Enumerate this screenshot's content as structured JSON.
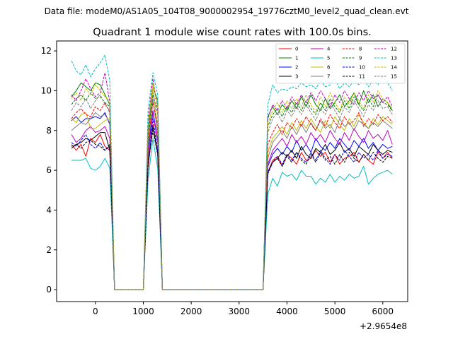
{
  "figure": {
    "suptitle": "Data file: modeM0/AS1A05_104T08_9000002954_19776cztM0_level2_quad_clean.evt",
    "offset_label": "+2.9654e8"
  },
  "chart_data": {
    "type": "line",
    "title": "Quadrant 1 module wise count rates with 100.0s bins.",
    "xlabel": "",
    "ylabel": "",
    "xlim": [
      -810,
      6520
    ],
    "ylim": [
      -0.6,
      12.5
    ],
    "x_ticks": [
      0,
      1000,
      2000,
      3000,
      4000,
      5000,
      6000
    ],
    "y_ticks": [
      0,
      2,
      4,
      6,
      8,
      10,
      12
    ],
    "x_tick_labels": [
      "0",
      "1000",
      "2000",
      "3000",
      "4000",
      "5000",
      "6000"
    ],
    "y_tick_labels": [
      "0",
      "2",
      "4",
      "6",
      "8",
      "10",
      "12"
    ],
    "legend_position": "top-right",
    "x": [
      -500,
      -400,
      -300,
      -200,
      -100,
      0,
      100,
      200,
      300,
      400,
      500,
      600,
      700,
      800,
      900,
      1000,
      1100,
      1200,
      1300,
      1400,
      1500,
      1600,
      1700,
      1800,
      1900,
      2000,
      2100,
      2200,
      2300,
      2400,
      2500,
      2600,
      2700,
      2800,
      2900,
      3000,
      3100,
      3200,
      3300,
      3400,
      3500,
      3600,
      3700,
      3800,
      3900,
      4000,
      4100,
      4200,
      4300,
      4400,
      4500,
      4600,
      4700,
      4800,
      4900,
      5000,
      5100,
      5200,
      5300,
      5400,
      5500,
      5600,
      5700,
      5800,
      5900,
      6000,
      6100,
      6200
    ],
    "series": [
      {
        "name": "0",
        "color": "#ff0000",
        "dash": "solid",
        "values": [
          7.3,
          7.0,
          7.3,
          6.7,
          7.6,
          7.4,
          7.8,
          7.2,
          7.0,
          0.0,
          0.0,
          0.0,
          0.0,
          0.0,
          0.0,
          0.0,
          6.1,
          8.3,
          6.8,
          0.0,
          0.0,
          0.0,
          0.0,
          0.0,
          0.0,
          0.0,
          0.0,
          0.0,
          0.0,
          0.0,
          0.0,
          0.0,
          0.0,
          0.0,
          0.0,
          0.0,
          0.0,
          0.0,
          0.0,
          0.0,
          0.0,
          5.9,
          6.5,
          6.7,
          6.2,
          6.8,
          6.6,
          6.3,
          6.9,
          6.5,
          6.6,
          7.0,
          6.7,
          6.9,
          6.4,
          6.8,
          6.3,
          6.6,
          6.7,
          6.9,
          6.4,
          6.8,
          6.5,
          6.3,
          6.9,
          6.6,
          6.9,
          6.6
        ]
      },
      {
        "name": "1",
        "color": "#008000",
        "dash": "solid",
        "values": [
          9.7,
          10.0,
          10.4,
          10.2,
          10.0,
          10.4,
          10.3,
          9.8,
          9.3,
          0.0,
          0.0,
          0.0,
          0.0,
          0.0,
          0.0,
          0.0,
          8.0,
          10.2,
          9.5,
          0.0,
          0.0,
          0.0,
          0.0,
          0.0,
          0.0,
          0.0,
          0.0,
          0.0,
          0.0,
          0.0,
          0.0,
          0.0,
          0.0,
          0.0,
          0.0,
          0.0,
          0.0,
          0.0,
          0.0,
          0.0,
          0.0,
          8.7,
          9.2,
          8.8,
          9.3,
          9.0,
          9.5,
          9.1,
          9.7,
          9.2,
          9.8,
          9.3,
          9.0,
          9.6,
          9.1,
          9.4,
          9.8,
          9.2,
          9.5,
          9.9,
          9.3,
          10.0,
          9.4,
          9.8,
          9.2,
          9.6,
          9.4,
          9.0
        ]
      },
      {
        "name": "2",
        "color": "#0000ff",
        "dash": "solid",
        "values": [
          8.5,
          8.7,
          8.4,
          8.6,
          8.6,
          8.7,
          8.6,
          8.9,
          8.3,
          0.0,
          0.0,
          0.0,
          0.0,
          0.0,
          0.0,
          0.0,
          7.0,
          9.0,
          7.5,
          0.0,
          0.0,
          0.0,
          0.0,
          0.0,
          0.0,
          0.0,
          0.0,
          0.0,
          0.0,
          0.0,
          0.0,
          0.0,
          0.0,
          0.0,
          0.0,
          0.0,
          0.0,
          0.0,
          0.0,
          0.0,
          0.0,
          6.2,
          6.8,
          7.1,
          6.8,
          7.2,
          6.9,
          7.5,
          7.0,
          7.3,
          6.9,
          7.6,
          7.2,
          7.0,
          7.4,
          7.1,
          7.6,
          7.3,
          7.0,
          7.5,
          7.2,
          7.6,
          7.1,
          7.4,
          7.0,
          7.3,
          7.1,
          7.2
        ]
      },
      {
        "name": "3",
        "color": "#000000",
        "dash": "solid",
        "values": [
          7.1,
          7.3,
          7.4,
          7.6,
          7.5,
          7.7,
          7.9,
          7.9,
          7.0,
          0.0,
          0.0,
          0.0,
          0.0,
          0.0,
          0.0,
          0.0,
          6.4,
          8.2,
          6.9,
          0.0,
          0.0,
          0.0,
          0.0,
          0.0,
          0.0,
          0.0,
          0.0,
          0.0,
          0.0,
          0.0,
          0.0,
          0.0,
          0.0,
          0.0,
          0.0,
          0.0,
          0.0,
          0.0,
          0.0,
          0.0,
          0.0,
          5.9,
          6.4,
          6.6,
          6.9,
          6.7,
          7.0,
          6.6,
          7.2,
          6.8,
          6.6,
          7.1,
          6.9,
          7.3,
          6.8,
          7.0,
          7.4,
          6.9,
          7.1,
          6.7,
          7.2,
          7.0,
          6.8,
          7.3,
          7.0,
          6.8,
          7.0,
          6.9
        ]
      },
      {
        "name": "4",
        "color": "#bf00bf",
        "dash": "solid",
        "values": [
          7.8,
          7.4,
          7.6,
          8.0,
          8.2,
          7.9,
          8.0,
          8.2,
          7.6,
          0.0,
          0.0,
          0.0,
          0.0,
          0.0,
          0.0,
          0.0,
          6.6,
          8.9,
          7.4,
          0.0,
          0.0,
          0.0,
          0.0,
          0.0,
          0.0,
          0.0,
          0.0,
          0.0,
          0.0,
          0.0,
          0.0,
          0.0,
          0.0,
          0.0,
          0.0,
          0.0,
          0.0,
          0.0,
          0.0,
          0.0,
          0.0,
          6.3,
          7.0,
          7.3,
          7.6,
          7.2,
          7.8,
          7.4,
          7.7,
          7.3,
          7.9,
          7.5,
          7.8,
          7.4,
          8.0,
          7.6,
          7.3,
          7.9,
          7.5,
          8.1,
          7.7,
          7.4,
          8.0,
          7.6,
          7.8,
          7.5,
          8.0,
          7.3
        ]
      },
      {
        "name": "5",
        "color": "#00bfbf",
        "dash": "solid",
        "values": [
          6.5,
          6.5,
          6.5,
          6.6,
          6.1,
          6.0,
          6.2,
          6.6,
          6.1,
          0.0,
          0.0,
          0.0,
          0.0,
          0.0,
          0.0,
          0.0,
          5.5,
          7.6,
          6.1,
          0.0,
          0.0,
          0.0,
          0.0,
          0.0,
          0.0,
          0.0,
          0.0,
          0.0,
          0.0,
          0.0,
          0.0,
          0.0,
          0.0,
          0.0,
          0.0,
          0.0,
          0.0,
          0.0,
          0.0,
          0.0,
          0.0,
          4.8,
          5.6,
          5.2,
          5.9,
          5.7,
          5.8,
          5.5,
          6.0,
          5.7,
          5.7,
          5.3,
          5.6,
          5.4,
          5.8,
          5.4,
          5.7,
          5.5,
          5.8,
          5.6,
          5.7,
          6.2,
          5.3,
          5.6,
          5.8,
          5.9,
          6.0,
          5.8
        ]
      },
      {
        "name": "6",
        "color": "#bfbf00",
        "dash": "solid",
        "values": [
          8.6,
          8.4,
          8.8,
          8.9,
          8.1,
          8.1,
          8.3,
          8.5,
          8.6,
          0.0,
          0.0,
          0.0,
          0.0,
          0.0,
          0.0,
          0.0,
          7.3,
          10.3,
          7.9,
          0.0,
          0.0,
          0.0,
          0.0,
          0.0,
          0.0,
          0.0,
          0.0,
          0.0,
          0.0,
          0.0,
          0.0,
          0.0,
          0.0,
          0.0,
          0.0,
          0.0,
          0.0,
          0.0,
          0.0,
          0.0,
          0.0,
          6.9,
          7.6,
          7.9,
          8.2,
          7.8,
          8.4,
          8.0,
          8.5,
          8.1,
          8.6,
          8.2,
          7.9,
          8.5,
          8.1,
          8.7,
          8.3,
          8.0,
          8.6,
          8.2,
          8.8,
          8.4,
          8.1,
          8.6,
          8.3,
          8.7,
          8.5,
          8.3
        ]
      },
      {
        "name": "7",
        "color": "#7f7f7f",
        "dash": "solid",
        "values": [
          8.0,
          8.2,
          8.4,
          8.3,
          8.6,
          8.9,
          8.7,
          8.8,
          8.4,
          0.0,
          0.0,
          0.0,
          0.0,
          0.0,
          0.0,
          0.0,
          7.1,
          9.6,
          7.8,
          0.0,
          0.0,
          0.0,
          0.0,
          0.0,
          0.0,
          0.0,
          0.0,
          0.0,
          0.0,
          0.0,
          0.0,
          0.0,
          0.0,
          0.0,
          0.0,
          0.0,
          0.0,
          0.0,
          0.0,
          0.0,
          0.0,
          6.6,
          7.4,
          7.7,
          8.0,
          7.6,
          8.2,
          7.8,
          8.3,
          7.9,
          8.4,
          8.0,
          8.5,
          8.1,
          8.3,
          7.9,
          8.6,
          8.2,
          8.4,
          8.0,
          8.5,
          8.3,
          8.1,
          8.4,
          8.2,
          8.5,
          8.3,
          8.1
        ]
      },
      {
        "name": "8",
        "color": "#ff0000",
        "dash": "dashed",
        "values": [
          8.6,
          8.9,
          9.1,
          8.8,
          8.7,
          9.2,
          9.0,
          9.4,
          8.9,
          0.0,
          0.0,
          0.0,
          0.0,
          0.0,
          0.0,
          0.0,
          7.6,
          9.4,
          8.3,
          0.0,
          0.0,
          0.0,
          0.0,
          0.0,
          0.0,
          0.0,
          0.0,
          0.0,
          0.0,
          0.0,
          0.0,
          0.0,
          0.0,
          0.0,
          0.0,
          0.0,
          0.0,
          0.0,
          0.0,
          0.0,
          0.0,
          7.3,
          7.9,
          8.3,
          7.8,
          8.4,
          8.1,
          8.6,
          8.2,
          8.7,
          8.3,
          8.0,
          8.6,
          8.2,
          8.8,
          8.4,
          8.1,
          8.7,
          8.3,
          8.5,
          8.9,
          8.2,
          8.6,
          8.3,
          8.8,
          8.5,
          8.7,
          8.4
        ]
      },
      {
        "name": "9",
        "color": "#008000",
        "dash": "dashed",
        "values": [
          9.3,
          9.6,
          9.8,
          9.5,
          9.9,
          9.6,
          9.7,
          9.4,
          9.2,
          0.0,
          0.0,
          0.0,
          0.0,
          0.0,
          0.0,
          0.0,
          7.9,
          9.8,
          8.9,
          0.0,
          0.0,
          0.0,
          0.0,
          0.0,
          0.0,
          0.0,
          0.0,
          0.0,
          0.0,
          0.0,
          0.0,
          0.0,
          0.0,
          0.0,
          0.0,
          0.0,
          0.0,
          0.0,
          0.0,
          0.0,
          0.0,
          8.2,
          8.8,
          9.1,
          8.7,
          9.2,
          8.9,
          9.4,
          9.0,
          9.5,
          9.1,
          8.8,
          9.4,
          9.0,
          9.6,
          9.2,
          8.9,
          9.5,
          9.1,
          9.7,
          9.3,
          9.0,
          9.6,
          9.2,
          9.8,
          9.4,
          9.3,
          9.0
        ]
      },
      {
        "name": "10",
        "color": "#0000ff",
        "dash": "dashed",
        "values": [
          7.4,
          7.2,
          7.5,
          7.8,
          7.3,
          7.1,
          7.4,
          7.0,
          7.2,
          0.0,
          0.0,
          0.0,
          0.0,
          0.0,
          0.0,
          0.0,
          6.2,
          8.6,
          7.0,
          0.0,
          0.0,
          0.0,
          0.0,
          0.0,
          0.0,
          0.0,
          0.0,
          0.0,
          0.0,
          0.0,
          0.0,
          0.0,
          0.0,
          0.0,
          0.0,
          0.0,
          0.0,
          0.0,
          0.0,
          0.0,
          0.0,
          5.8,
          6.4,
          6.7,
          6.3,
          6.8,
          6.5,
          6.9,
          6.6,
          6.4,
          6.9,
          6.5,
          7.0,
          6.6,
          6.3,
          6.8,
          6.5,
          7.0,
          6.7,
          6.4,
          6.9,
          6.6,
          6.8,
          6.5,
          7.0,
          6.6,
          6.8,
          6.7
        ]
      },
      {
        "name": "11",
        "color": "#000000",
        "dash": "dashed",
        "values": [
          7.2,
          7.3,
          7.1,
          7.4,
          7.5,
          7.3,
          7.2,
          7.0,
          7.3,
          0.0,
          0.0,
          0.0,
          0.0,
          0.0,
          0.0,
          0.0,
          6.3,
          8.0,
          6.8,
          0.0,
          0.0,
          0.0,
          0.0,
          0.0,
          0.0,
          0.0,
          0.0,
          0.0,
          0.0,
          0.0,
          0.0,
          0.0,
          0.0,
          0.0,
          0.0,
          0.0,
          0.0,
          0.0,
          0.0,
          0.0,
          0.0,
          5.9,
          6.4,
          6.6,
          6.2,
          6.7,
          6.4,
          6.9,
          6.5,
          6.3,
          6.8,
          6.4,
          6.9,
          6.5,
          6.7,
          6.3,
          6.8,
          6.4,
          6.9,
          6.6,
          6.4,
          6.8,
          6.5,
          6.9,
          6.6,
          6.4,
          6.7,
          6.6
        ]
      },
      {
        "name": "12",
        "color": "#bf00bf",
        "dash": "dashed",
        "values": [
          9.8,
          9.5,
          10.0,
          10.6,
          10.1,
          9.7,
          9.9,
          10.9,
          9.4,
          0.0,
          0.0,
          0.0,
          0.0,
          0.0,
          0.0,
          0.0,
          8.5,
          10.6,
          9.0,
          0.0,
          0.0,
          0.0,
          0.0,
          0.0,
          0.0,
          0.0,
          0.0,
          0.0,
          0.0,
          0.0,
          0.0,
          0.0,
          0.0,
          0.0,
          0.0,
          0.0,
          0.0,
          0.0,
          0.0,
          0.0,
          0.0,
          8.6,
          9.3,
          9.0,
          9.5,
          9.1,
          9.7,
          9.3,
          9.8,
          9.4,
          9.9,
          9.5,
          10.0,
          9.6,
          9.2,
          9.8,
          9.4,
          10.0,
          9.6,
          9.3,
          9.9,
          9.5,
          10.0,
          9.6,
          9.8,
          9.4,
          9.7,
          9.2
        ]
      },
      {
        "name": "13",
        "color": "#00bfbf",
        "dash": "dashed",
        "values": [
          11.5,
          11.0,
          10.8,
          11.3,
          10.7,
          11.1,
          11.4,
          11.8,
          10.5,
          0.0,
          0.0,
          0.0,
          0.0,
          0.0,
          0.0,
          0.0,
          9.0,
          10.9,
          9.8,
          0.0,
          0.0,
          0.0,
          0.0,
          0.0,
          0.0,
          0.0,
          0.0,
          0.0,
          0.0,
          0.0,
          0.0,
          0.0,
          0.0,
          0.0,
          0.0,
          0.0,
          0.0,
          0.0,
          0.0,
          0.0,
          0.0,
          9.3,
          10.3,
          9.9,
          10.1,
          10.0,
          10.2,
          10.1,
          10.4,
          10.2,
          10.3,
          10.1,
          10.5,
          10.2,
          10.3,
          10.6,
          10.1,
          10.4,
          10.2,
          10.5,
          10.3,
          10.6,
          10.2,
          10.5,
          10.3,
          10.7,
          10.4,
          10.0
        ]
      },
      {
        "name": "14",
        "color": "#bfbf00",
        "dash": "dashed",
        "values": [
          9.6,
          9.9,
          9.5,
          10.1,
          9.8,
          10.3,
          10.0,
          9.7,
          9.5,
          0.0,
          0.0,
          0.0,
          0.0,
          0.0,
          0.0,
          0.0,
          8.3,
          10.4,
          9.2,
          0.0,
          0.0,
          0.0,
          0.0,
          0.0,
          0.0,
          0.0,
          0.0,
          0.0,
          0.0,
          0.0,
          0.0,
          0.0,
          0.0,
          0.0,
          0.0,
          0.0,
          0.0,
          0.0,
          0.0,
          0.0,
          0.0,
          8.4,
          9.0,
          9.4,
          8.9,
          9.5,
          9.1,
          9.6,
          9.2,
          9.8,
          9.3,
          8.9,
          9.7,
          9.2,
          9.9,
          9.4,
          9.0,
          9.7,
          9.3,
          9.9,
          9.5,
          9.1,
          9.8,
          9.4,
          10.0,
          9.6,
          9.4,
          9.1
        ]
      },
      {
        "name": "15",
        "color": "#7f7f7f",
        "dash": "dashed",
        "values": [
          9.0,
          9.4,
          9.2,
          9.6,
          9.1,
          9.5,
          9.8,
          9.3,
          9.0,
          0.0,
          0.0,
          0.0,
          0.0,
          0.0,
          0.0,
          0.0,
          8.1,
          9.9,
          8.8,
          0.0,
          0.0,
          0.0,
          0.0,
          0.0,
          0.0,
          0.0,
          0.0,
          0.0,
          0.0,
          0.0,
          0.0,
          0.0,
          0.0,
          0.0,
          0.0,
          0.0,
          0.0,
          0.0,
          0.0,
          0.0,
          0.0,
          7.9,
          8.6,
          8.9,
          8.4,
          9.0,
          8.7,
          9.2,
          8.8,
          9.3,
          8.9,
          8.5,
          9.1,
          8.8,
          9.4,
          9.0,
          8.6,
          9.2,
          8.9,
          9.5,
          9.1,
          8.7,
          9.3,
          9.0,
          9.5,
          9.1,
          9.2,
          8.8
        ]
      }
    ]
  }
}
